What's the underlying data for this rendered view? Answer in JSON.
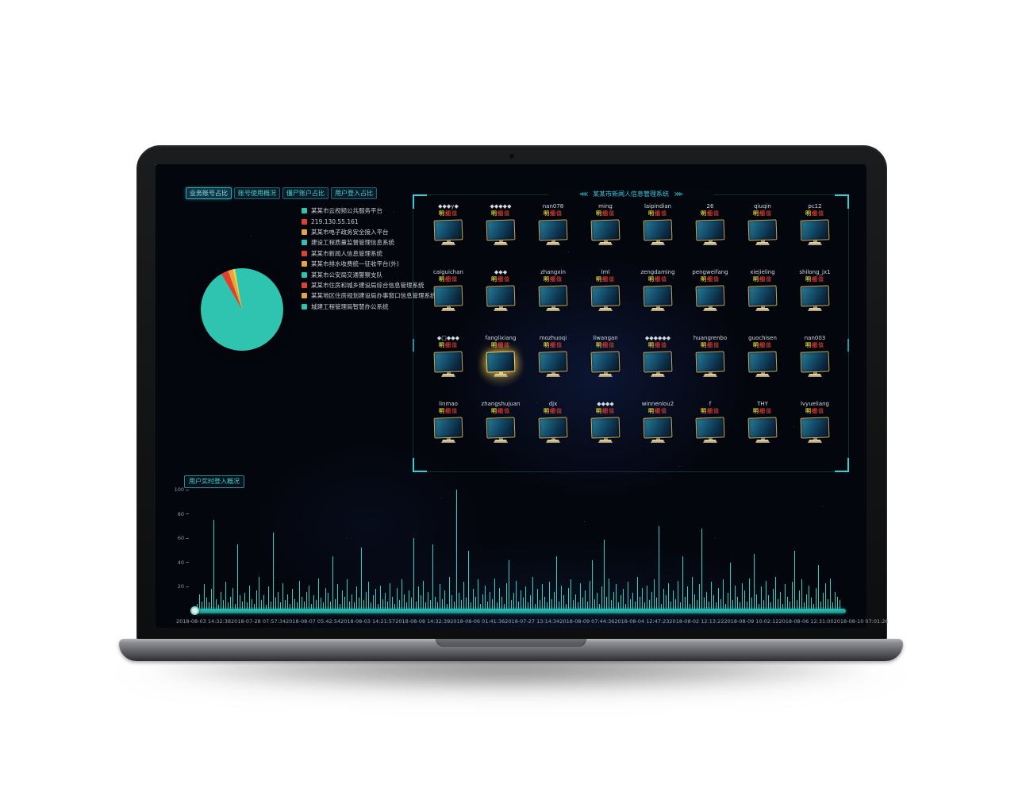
{
  "dashboard": {
    "colors": {
      "accent_teal": "#2fd0d8",
      "bar_teal": "#29d3c3",
      "legend_teal": "#2ec4b0",
      "legend_red": "#e0402e",
      "legend_orange": "#e8a33d",
      "badge_yellow": "#d8c832",
      "badge_red": "#e5372a",
      "badge_dark_red": "#a63428"
    },
    "tabs": [
      {
        "label": "业务账号占比",
        "active": true
      },
      {
        "label": "账号使用概况",
        "active": false
      },
      {
        "label": "僵尸账户占比",
        "active": false
      },
      {
        "label": "用户登入占比",
        "active": false
      }
    ],
    "legend": {
      "items": [
        {
          "label": "某某市云视频公共服务平台",
          "color": "#2ec4b0"
        },
        {
          "label": "219.130.55.161",
          "color": "#e0402e"
        },
        {
          "label": "某某市电子政务安全接入平台",
          "color": "#e8a33d"
        },
        {
          "label": "建设工程质量监督管理信息系统",
          "color": "#2ec4b0"
        },
        {
          "label": "某某市新闻人信息管理系统",
          "color": "#e0402e"
        },
        {
          "label": "某某市排水收费统一征收平台(外)",
          "color": "#e8a33d"
        },
        {
          "label": "某某市公安局交通警察支队",
          "color": "#2ec4b0"
        },
        {
          "label": "某某市住房和城乡建设局综合信息管理系统",
          "color": "#e0402e"
        },
        {
          "label": "某某地区住房规划建设局办事窗口信息管理系统",
          "color": "#e8a33d"
        },
        {
          "label": "城建工程管理局智慧办公系统",
          "color": "#2ec4b0"
        }
      ]
    },
    "pie": {
      "type": "pie",
      "start_deg": -30,
      "slices": [
        {
          "color": "#e0402e",
          "value": 2.8
        },
        {
          "color": "#e8a33d",
          "value": 1.9
        },
        {
          "color": "#edd24a",
          "value": 0.9
        },
        {
          "color": "#2ec4b0",
          "value": 94.4
        }
      ]
    },
    "user_panel": {
      "left_arrows": "⋘",
      "right_arrows": "⋙",
      "title": "某某市新闻人信息管理系统",
      "badge_chars": [
        {
          "char": "明",
          "color": "#d8c832"
        },
        {
          "char": "细",
          "color": "#e5372a"
        },
        {
          "char": "值",
          "color": "#a63428"
        }
      ],
      "highlight": {
        "row": 2,
        "col": 1
      },
      "users": [
        [
          "◆◆◆y◆",
          "◆◆◆◆◆",
          "nan078",
          "ming",
          "laipindian",
          "26",
          "qiuqin",
          "pc12"
        ],
        [
          "caiguichan",
          "◆◆◆",
          "zhangxin",
          "lml",
          "zengdaming",
          "pengweifang",
          "xiejieling",
          "shilong_jx1"
        ],
        [
          "◆□◆◆◆",
          "fanglixiang",
          "mozhuoqi",
          "liwangan",
          "◆◆◆◆◆◆",
          "huangrenbo",
          "guochisen",
          "nan003"
        ],
        [
          "linmao",
          "zhangshujuan",
          "djx",
          "◆◆◆◆",
          "winnenlou2",
          "f",
          "THY",
          "lvyueliang"
        ]
      ]
    },
    "login_chart": {
      "type": "bar",
      "title": "用户实时登入概况",
      "y_ticks": [
        100,
        80,
        60,
        40,
        20
      ],
      "ylim": [
        0,
        100
      ],
      "x_labels": [
        "2018-08-03 14:32:38",
        "2018-07-28 07:57:34",
        "2018-08-07 05:42:54",
        "2018-08-03 14:21:57",
        "2018-08-08 14:32:39",
        "2018-08-06 01:41:36",
        "2018-07-27 13:14:34",
        "2018-08-09 07:44:36",
        "2018-08-04 12:47:23",
        "2018-08-02 12:13:22",
        "2018-08-09 10:02:12",
        "2018-08-06 12:31:00",
        "2018-08-10 07:01:26"
      ],
      "values": [
        6,
        14,
        8,
        22,
        11,
        7,
        18,
        75,
        10,
        5,
        16,
        9,
        24,
        7,
        12,
        19,
        6,
        55,
        13,
        8,
        15,
        7,
        21,
        10,
        6,
        17,
        28,
        9,
        13,
        5,
        20,
        8,
        65,
        11,
        16,
        7,
        23,
        9,
        14,
        6,
        18,
        10,
        7,
        25,
        12,
        8,
        16,
        21,
        6,
        13,
        9,
        27,
        11,
        7,
        19,
        15,
        8,
        45,
        10,
        22,
        6,
        17,
        12,
        26,
        8,
        14,
        7,
        20,
        11,
        52,
        9,
        16,
        24,
        7,
        13,
        18,
        6,
        21,
        10,
        15,
        8,
        23,
        12,
        6,
        19,
        9,
        26,
        14,
        7,
        17,
        11,
        60,
        8,
        20,
        13,
        25,
        7,
        16,
        9,
        55,
        12,
        7,
        22,
        10,
        17,
        6,
        28,
        13,
        8,
        100,
        15,
        9,
        24,
        11,
        50,
        7,
        18,
        12,
        26,
        6,
        14,
        21,
        8,
        16,
        10,
        27,
        7,
        19,
        12,
        6,
        23,
        42,
        9,
        15,
        25,
        8,
        17,
        11,
        20,
        7,
        13,
        28,
        6,
        18,
        9,
        22,
        12,
        7,
        24,
        10,
        16,
        45,
        8,
        21,
        13,
        6,
        19,
        26,
        9,
        14,
        7,
        23,
        11,
        17,
        8,
        25,
        42,
        10,
        15,
        6,
        20,
        59,
        12,
        27,
        9,
        16,
        22,
        7,
        13,
        18,
        6,
        24,
        10,
        15,
        8,
        28,
        12,
        19,
        7,
        21,
        9,
        16,
        26,
        11,
        70,
        6,
        18,
        13,
        23,
        8,
        17,
        10,
        25,
        7,
        45,
        12,
        20,
        6,
        28,
        14,
        9,
        22,
        68,
        11,
        16,
        8,
        24,
        13,
        7,
        19,
        10,
        26,
        6,
        15,
        40,
        9,
        21,
        12,
        7,
        23,
        17,
        8,
        27,
        11,
        47,
        14,
        6,
        20,
        9,
        25,
        13,
        7,
        18,
        28,
        10,
        16,
        6,
        22,
        12,
        8,
        24,
        50,
        9,
        17,
        26,
        7,
        14,
        21,
        11,
        6,
        19,
        38,
        8,
        15,
        23,
        10,
        27,
        7,
        16,
        12,
        9
      ]
    }
  }
}
